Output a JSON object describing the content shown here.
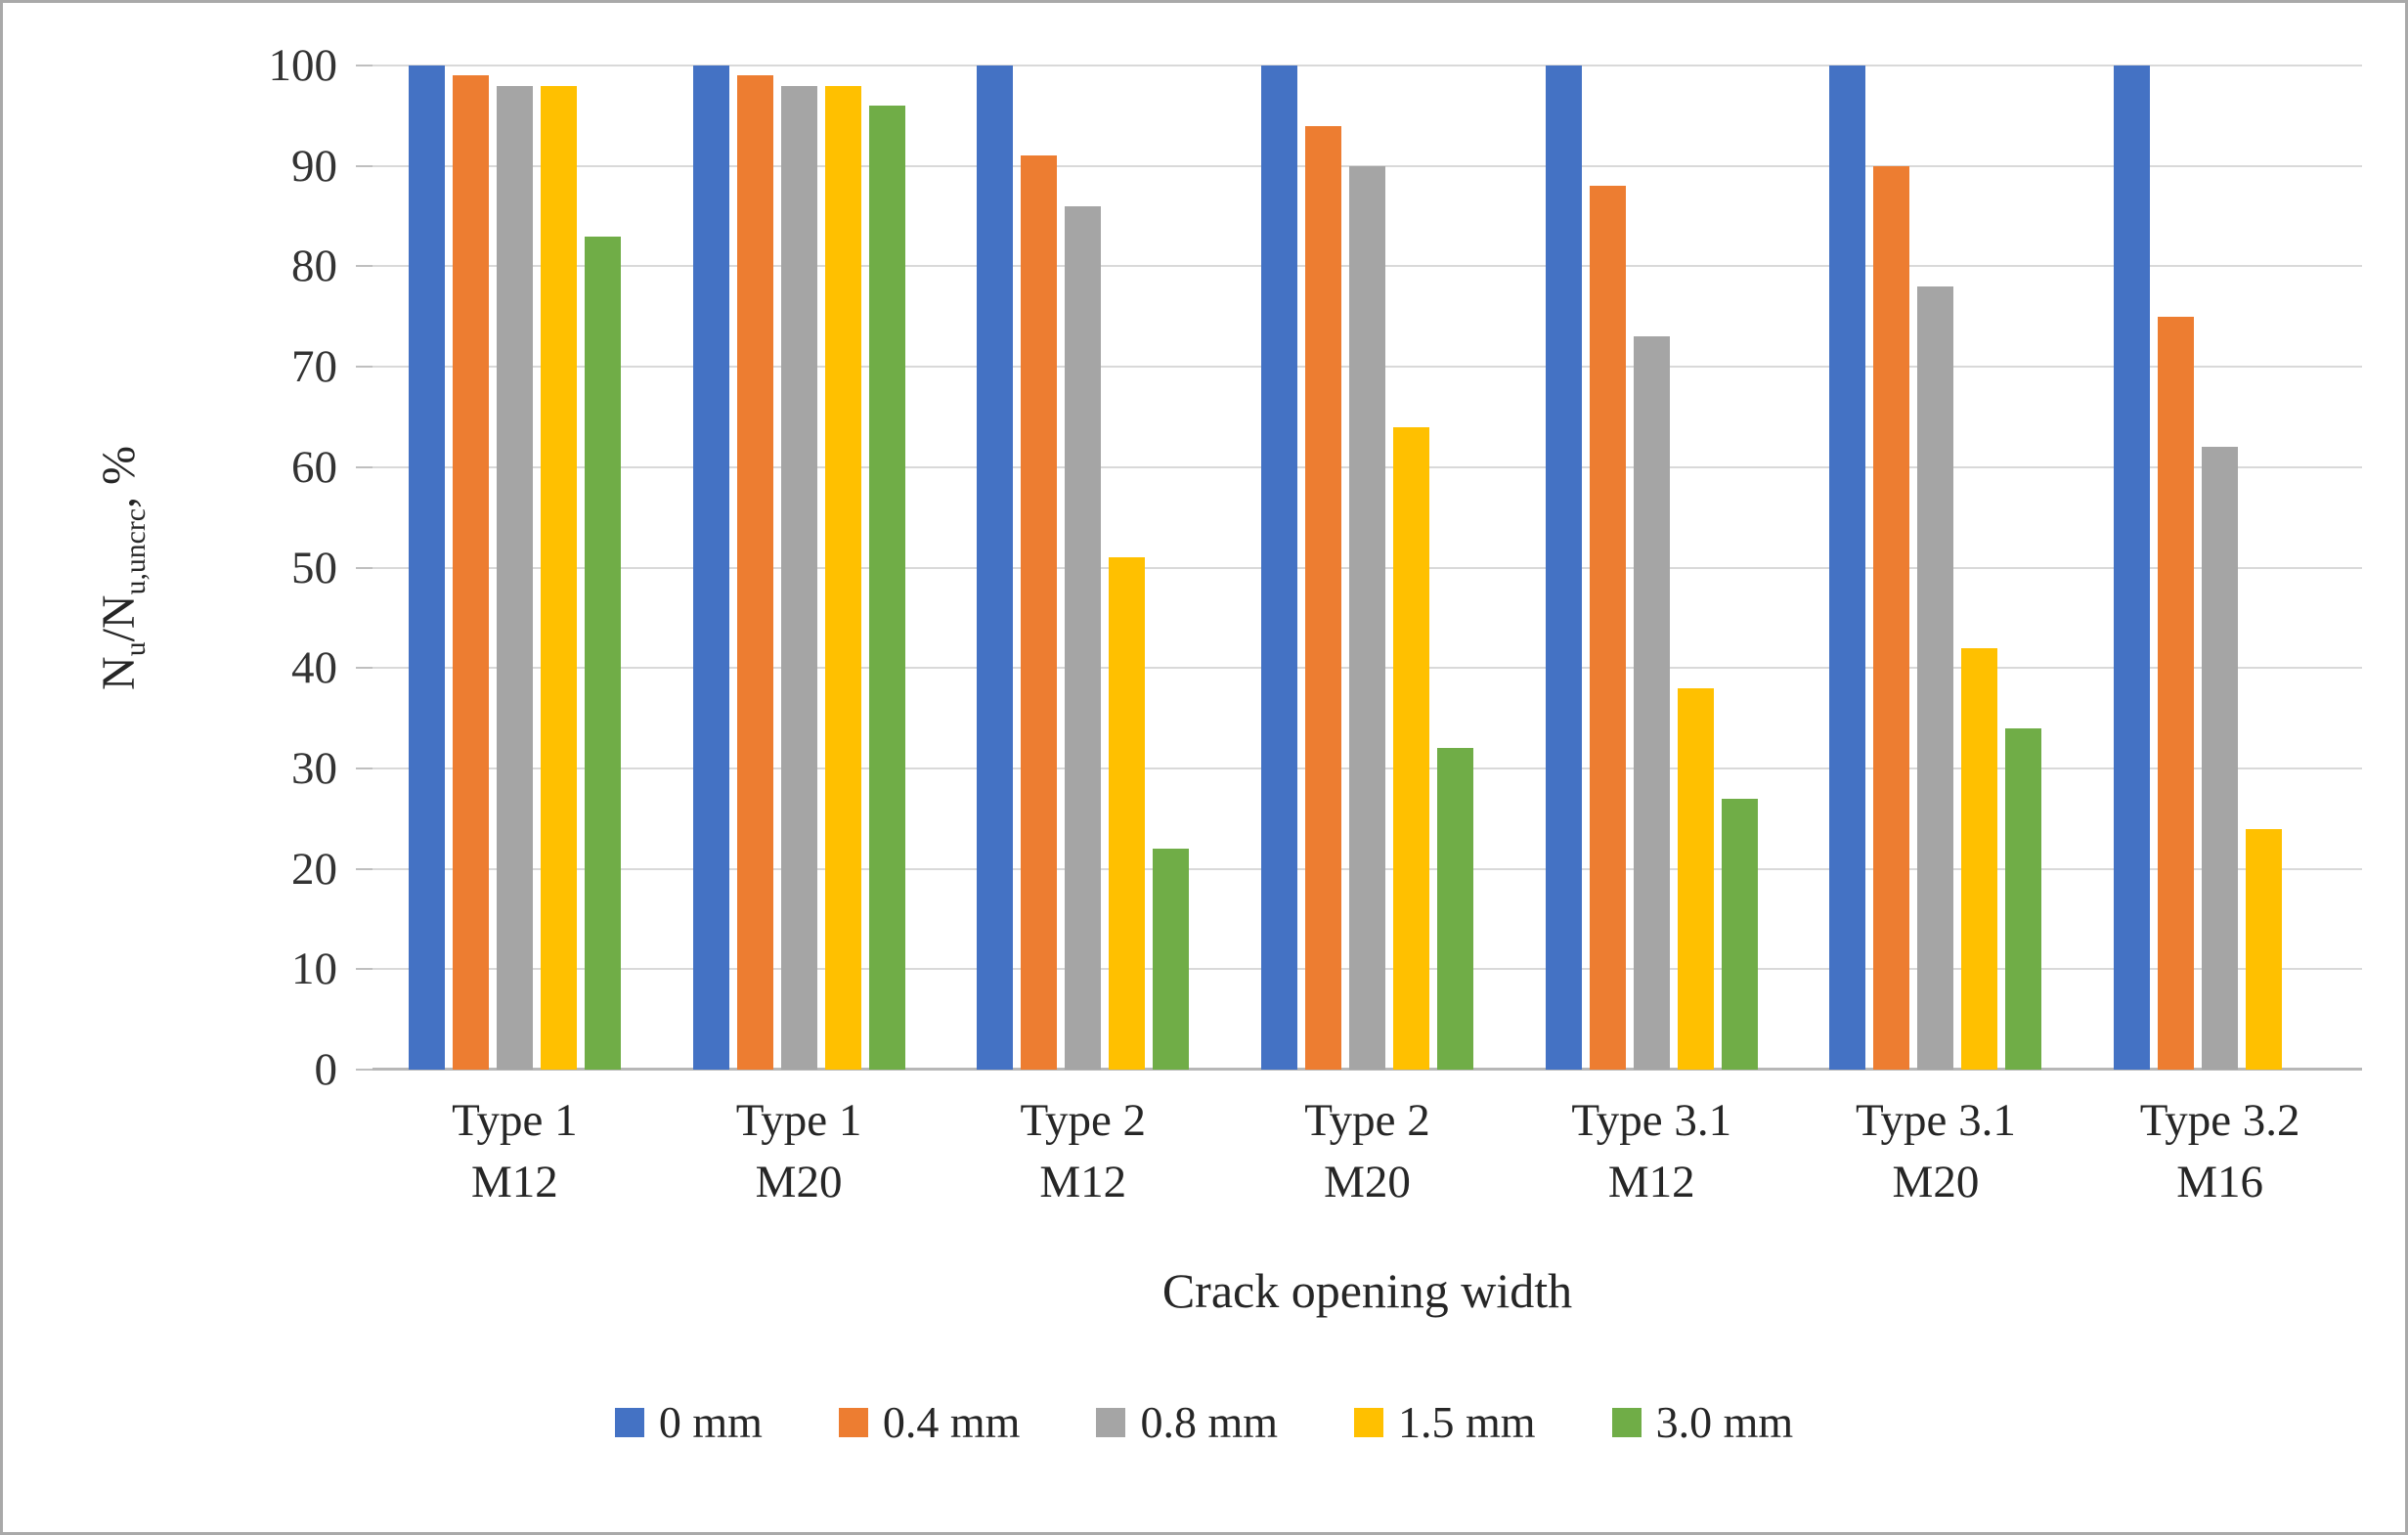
{
  "figure": {
    "y_axis_title_segments": [
      {
        "text": "N"
      },
      {
        "text": "u",
        "sub": true
      },
      {
        "text": "/N"
      },
      {
        "text": "u,uncrc",
        "sub": true
      },
      {
        "text": ", %"
      }
    ]
  },
  "chart_data": {
    "type": "bar",
    "title": "",
    "xlabel": "Crack opening width",
    "ylabel": "Nu/Nu,uncrc, %",
    "ylim": [
      0,
      100
    ],
    "ytick_step": 10,
    "grid": "horizontal",
    "legend_position": "bottom",
    "categories": [
      {
        "line1": "Type 1",
        "line2": "M12"
      },
      {
        "line1": "Type 1",
        "line2": "M20"
      },
      {
        "line1": "Type 2",
        "line2": "M12"
      },
      {
        "line1": "Type 2",
        "line2": "M20"
      },
      {
        "line1": "Type 3.1",
        "line2": "M12"
      },
      {
        "line1": "Type 3.1",
        "line2": "M20"
      },
      {
        "line1": "Type 3.2",
        "line2": "M16"
      }
    ],
    "series": [
      {
        "name": "0 mm",
        "color": "#4472C4",
        "values": [
          100,
          100,
          100,
          100,
          100,
          100,
          100
        ]
      },
      {
        "name": "0.4 mm",
        "color": "#ED7D31",
        "values": [
          99,
          99,
          91,
          94,
          88,
          90,
          75
        ]
      },
      {
        "name": "0.8 mm",
        "color": "#A5A5A5",
        "values": [
          98,
          98,
          86,
          90,
          73,
          78,
          62
        ]
      },
      {
        "name": "1.5 mm",
        "color": "#FFC000",
        "values": [
          98,
          98,
          51,
          64,
          38,
          42,
          24
        ]
      },
      {
        "name": "3.0 mm",
        "color": "#70AD47",
        "values": [
          83,
          96,
          22,
          32,
          27,
          34,
          null
        ]
      }
    ],
    "axis_colors": {
      "gridline": "#d9d9d9",
      "axis_line": "#b7b7b7",
      "tick_mark": "#bfbfbf",
      "label_text": "#333333"
    }
  }
}
